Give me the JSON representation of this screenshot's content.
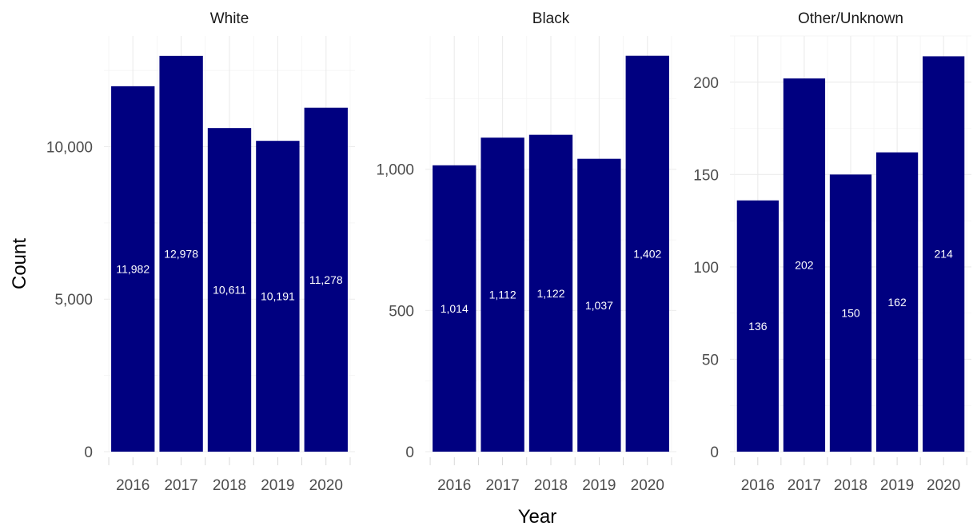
{
  "chart_data": {
    "type": "bar",
    "xlabel": "Year",
    "ylabel": "Count",
    "bar_color": "#000080",
    "grid": true,
    "panels": [
      {
        "title": "White",
        "categories": [
          "2016",
          "2017",
          "2018",
          "2019",
          "2020"
        ],
        "values": [
          11982,
          12978,
          10611,
          10191,
          11278
        ],
        "value_labels": [
          "11,982",
          "12,978",
          "10,611",
          "10,191",
          "11,278"
        ],
        "ylim": [
          0,
          13630
        ],
        "yticks": [
          0,
          5000,
          10000
        ],
        "ytick_labels": [
          "0",
          "5,000",
          "10,000"
        ]
      },
      {
        "title": "Black",
        "categories": [
          "2016",
          "2017",
          "2018",
          "2019",
          "2020"
        ],
        "values": [
          1014,
          1112,
          1122,
          1037,
          1402
        ],
        "value_labels": [
          "1,014",
          "1,112",
          "1,122",
          "1,037",
          "1,402"
        ],
        "ylim": [
          0,
          1472
        ],
        "yticks": [
          0,
          500,
          1000
        ],
        "ytick_labels": [
          "0",
          "500",
          "1,000"
        ]
      },
      {
        "title": "Other/Unknown",
        "categories": [
          "2016",
          "2017",
          "2018",
          "2019",
          "2020"
        ],
        "values": [
          136,
          202,
          150,
          162,
          214
        ],
        "value_labels": [
          "136",
          "202",
          "150",
          "162",
          "214"
        ],
        "ylim": [
          0,
          225
        ],
        "yticks": [
          0,
          50,
          100,
          150,
          200
        ],
        "ytick_labels": [
          "0",
          "50",
          "100",
          "150",
          "200"
        ]
      }
    ]
  }
}
